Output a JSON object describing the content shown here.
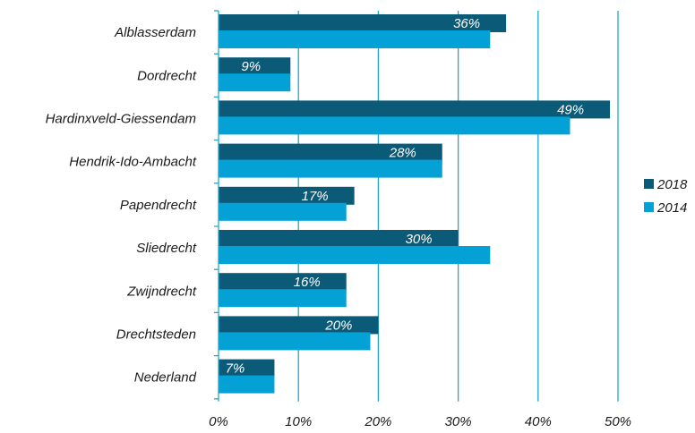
{
  "chart_data": {
    "type": "bar",
    "orientation": "horizontal",
    "categories": [
      "Alblasserdam",
      "Dordrecht",
      "Hardinxveld-Giessendam",
      "Hendrik-Ido-Ambacht",
      "Papendrecht",
      "Sliedrecht",
      "Zwijndrecht",
      "Drechtsteden",
      "Nederland"
    ],
    "series": [
      {
        "name": "2018",
        "color": "#0b5a78",
        "values": [
          36,
          9,
          49,
          28,
          17,
          30,
          16,
          20,
          7
        ],
        "labels": [
          "36%",
          "9%",
          "49%",
          "28%",
          "17%",
          "30%",
          "16%",
          "20%",
          "7%"
        ]
      },
      {
        "name": "2014",
        "color": "#03a1d6",
        "values": [
          34,
          9,
          44,
          28,
          16,
          34,
          16,
          19,
          7
        ]
      }
    ],
    "xlim": [
      0,
      50
    ],
    "xticks": [
      0,
      10,
      20,
      30,
      40,
      50
    ],
    "xtick_labels": [
      "0%",
      "10%",
      "20%",
      "30%",
      "40%",
      "50%"
    ],
    "grid": "vertical",
    "legend_position": "right",
    "title": "",
    "xlabel": "",
    "ylabel": ""
  }
}
